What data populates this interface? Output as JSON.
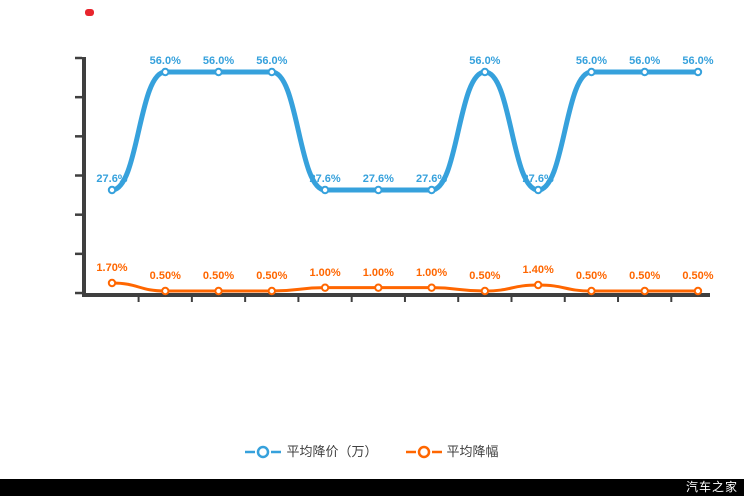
{
  "page": {
    "background": "#ffffff",
    "watermark": "汽车之家",
    "watermark_bar_color": "#000000"
  },
  "artifact": {
    "red_dot_color": "#e8252d"
  },
  "legend": {
    "items": [
      {
        "label": "平均降价（万）",
        "color": "#36a1dc"
      },
      {
        "label": "平均降幅",
        "color": "#ff6600"
      }
    ]
  },
  "chart_data": {
    "type": "line",
    "title": "",
    "xlabel": "",
    "ylabel": "",
    "x_axis_labels_visible": false,
    "y_axis_labels_visible": false,
    "grid": false,
    "legend_position": "bottom",
    "num_points": 12,
    "axes": {
      "color": "#3f3f3f",
      "y_tick_count": 7,
      "x_tick_count": 11
    },
    "series": [
      {
        "name": "平均降价（万）",
        "color": "#36a1dc",
        "marker": "circle-white-center",
        "values": [
          27.6,
          56.0,
          56.0,
          56.0,
          27.6,
          27.6,
          27.6,
          56.0,
          27.6,
          56.0,
          56.0,
          56.0
        ],
        "point_labels": [
          "27.6%",
          "56.0%",
          "56.0%",
          "56.0%",
          "27.6%",
          "27.6%",
          "27.6%",
          "56.0%",
          "27.6%",
          "56.0%",
          "56.0%",
          "56.0%"
        ]
      },
      {
        "name": "平均降幅",
        "color": "#ff6600",
        "marker": "circle-white-center",
        "values": [
          1.7,
          0.5,
          0.5,
          0.5,
          1.0,
          1.0,
          1.0,
          0.5,
          1.4,
          0.5,
          0.5,
          0.5
        ],
        "point_labels": [
          "1.70%",
          "0.50%",
          "0.50%",
          "0.50%",
          "1.00%",
          "1.00%",
          "1.00%",
          "0.50%",
          "1.40%",
          "0.50%",
          "0.50%",
          "0.50%"
        ]
      }
    ]
  }
}
